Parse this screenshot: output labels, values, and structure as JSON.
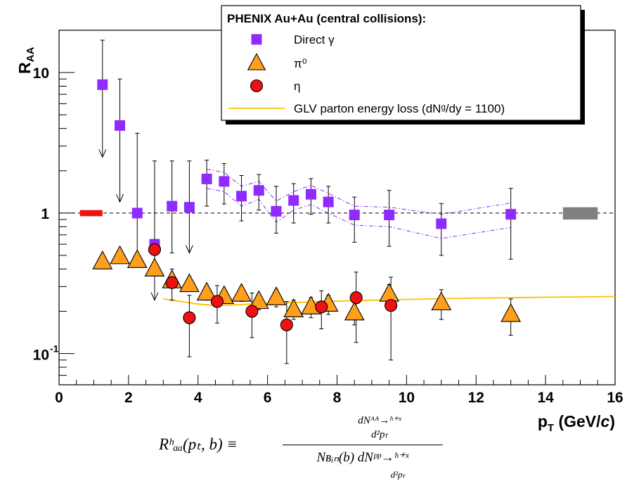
{
  "chart_data": {
    "type": "scatter",
    "ylabel": "R_AA",
    "xlabel": "p_T (GeV/c)",
    "xlim": [
      0,
      16
    ],
    "ylim": [
      0.06,
      20
    ],
    "yscale": "log",
    "x_ticks": [
      "0",
      "2",
      "4",
      "6",
      "8",
      "10",
      "12",
      "14",
      "16"
    ],
    "y_ticks": [
      {
        "value": 0.1,
        "label": "10",
        "exp": "-1"
      },
      {
        "value": 1,
        "label": "1",
        "exp": ""
      },
      {
        "value": 10,
        "label": "10",
        "exp": ""
      }
    ],
    "reference_line": 1,
    "legend": {
      "title": "PHENIX Au+Au (central collisions):",
      "position": "top-right",
      "entries": [
        {
          "name": "Direct γ",
          "marker": "square",
          "color": "#8f2bff"
        },
        {
          "name": "π⁰",
          "marker": "triangle",
          "color": "#ff9f1c"
        },
        {
          "name": "η",
          "marker": "circle",
          "color": "#ee1111"
        },
        {
          "name": "GLV parton energy loss (dNᵍ/dy = 1100)",
          "marker": "line",
          "color": "#ffbf00"
        }
      ]
    },
    "series": [
      {
        "name": "Direct γ",
        "points": [
          {
            "x": 1.25,
            "y": 8.2,
            "lo": 2.5,
            "hi": 17,
            "arrow": true
          },
          {
            "x": 1.75,
            "y": 4.2,
            "lo": 1.2,
            "hi": 9,
            "arrow": true
          },
          {
            "x": 2.25,
            "y": 1.0,
            "lo": 0.42,
            "hi": 3.7
          },
          {
            "x": 2.75,
            "y": 0.6,
            "lo": 0.24,
            "hi": 2.35,
            "arrow": true
          },
          {
            "x": 3.25,
            "y": 1.12,
            "lo": 0.52,
            "hi": 2.35
          },
          {
            "x": 3.75,
            "y": 1.1,
            "lo": 0.52,
            "hi": 2.35,
            "arrow": true
          },
          {
            "x": 4.25,
            "y": 1.75,
            "lo": 1.12,
            "hi": 2.38
          },
          {
            "x": 4.75,
            "y": 1.68,
            "lo": 1.16,
            "hi": 2.25
          },
          {
            "x": 5.25,
            "y": 1.32,
            "lo": 0.88,
            "hi": 1.85
          },
          {
            "x": 5.75,
            "y": 1.45,
            "lo": 1.05,
            "hi": 1.88
          },
          {
            "x": 6.25,
            "y": 1.03,
            "lo": 0.72,
            "hi": 1.55
          },
          {
            "x": 6.75,
            "y": 1.23,
            "lo": 0.85,
            "hi": 1.62
          },
          {
            "x": 7.25,
            "y": 1.36,
            "lo": 0.98,
            "hi": 1.76
          },
          {
            "x": 7.75,
            "y": 1.2,
            "lo": 0.85,
            "hi": 1.55
          },
          {
            "x": 8.5,
            "y": 0.97,
            "lo": 0.62,
            "hi": 1.3
          },
          {
            "x": 9.5,
            "y": 0.97,
            "lo": 0.58,
            "hi": 1.45
          },
          {
            "x": 11.0,
            "y": 0.84,
            "lo": 0.5,
            "hi": 1.17
          },
          {
            "x": 13.0,
            "y": 0.98,
            "lo": 0.47,
            "hi": 1.5
          }
        ],
        "band_upper": [
          [
            4.25,
            2.05
          ],
          [
            4.75,
            1.95
          ],
          [
            5.25,
            1.55
          ],
          [
            5.75,
            1.68
          ],
          [
            6.25,
            1.22
          ],
          [
            6.75,
            1.42
          ],
          [
            7.25,
            1.58
          ],
          [
            7.75,
            1.38
          ],
          [
            8.5,
            1.12
          ],
          [
            9.5,
            1.1
          ],
          [
            11.0,
            0.98
          ],
          [
            13.0,
            1.18
          ]
        ],
        "band_lower": [
          [
            4.25,
            1.5
          ],
          [
            4.75,
            1.42
          ],
          [
            5.25,
            1.12
          ],
          [
            5.75,
            1.25
          ],
          [
            6.25,
            0.86
          ],
          [
            6.75,
            1.05
          ],
          [
            7.25,
            1.15
          ],
          [
            7.75,
            1.0
          ],
          [
            8.5,
            0.82
          ],
          [
            9.5,
            0.8
          ],
          [
            11.0,
            0.66
          ],
          [
            13.0,
            0.79
          ]
        ]
      },
      {
        "name": "π⁰",
        "points": [
          {
            "x": 1.25,
            "y": 0.45,
            "lo": 0.41,
            "hi": 0.5
          },
          {
            "x": 1.75,
            "y": 0.49,
            "lo": 0.45,
            "hi": 0.54
          },
          {
            "x": 2.25,
            "y": 0.46,
            "lo": 0.42,
            "hi": 0.5
          },
          {
            "x": 2.75,
            "y": 0.4,
            "lo": 0.36,
            "hi": 0.44
          },
          {
            "x": 3.25,
            "y": 0.33,
            "lo": 0.3,
            "hi": 0.37
          },
          {
            "x": 3.75,
            "y": 0.31,
            "lo": 0.28,
            "hi": 0.34
          },
          {
            "x": 4.25,
            "y": 0.27,
            "lo": 0.24,
            "hi": 0.3
          },
          {
            "x": 4.75,
            "y": 0.255,
            "lo": 0.23,
            "hi": 0.28
          },
          {
            "x": 5.25,
            "y": 0.265,
            "lo": 0.235,
            "hi": 0.295
          },
          {
            "x": 5.75,
            "y": 0.235,
            "lo": 0.205,
            "hi": 0.265
          },
          {
            "x": 6.25,
            "y": 0.25,
            "lo": 0.215,
            "hi": 0.285
          },
          {
            "x": 6.75,
            "y": 0.205,
            "lo": 0.175,
            "hi": 0.24
          },
          {
            "x": 7.25,
            "y": 0.215,
            "lo": 0.18,
            "hi": 0.25
          },
          {
            "x": 7.75,
            "y": 0.225,
            "lo": 0.19,
            "hi": 0.26
          },
          {
            "x": 8.5,
            "y": 0.195,
            "lo": 0.16,
            "hi": 0.235
          },
          {
            "x": 9.5,
            "y": 0.265,
            "lo": 0.22,
            "hi": 0.31
          },
          {
            "x": 11.0,
            "y": 0.23,
            "lo": 0.175,
            "hi": 0.285
          },
          {
            "x": 13.0,
            "y": 0.19,
            "lo": 0.135,
            "hi": 0.245
          }
        ]
      },
      {
        "name": "η",
        "points": [
          {
            "x": 2.75,
            "y": 0.55,
            "lo": 0.45,
            "hi": 0.65
          },
          {
            "x": 3.25,
            "y": 0.32,
            "lo": 0.24,
            "hi": 0.4
          },
          {
            "x": 3.75,
            "y": 0.18,
            "lo": 0.095,
            "hi": 0.26
          },
          {
            "x": 4.55,
            "y": 0.235,
            "lo": 0.165,
            "hi": 0.305
          },
          {
            "x": 5.55,
            "y": 0.2,
            "lo": 0.13,
            "hi": 0.27
          },
          {
            "x": 6.55,
            "y": 0.16,
            "lo": 0.085,
            "hi": 0.235
          },
          {
            "x": 7.55,
            "y": 0.215,
            "lo": 0.15,
            "hi": 0.28
          },
          {
            "x": 8.55,
            "y": 0.25,
            "lo": 0.12,
            "hi": 0.38
          },
          {
            "x": 9.55,
            "y": 0.22,
            "lo": 0.09,
            "hi": 0.35
          }
        ]
      },
      {
        "name": "GLV parton energy loss (dNᵍ/dy = 1100)",
        "line": [
          [
            3.0,
            0.245
          ],
          [
            3.5,
            0.235
          ],
          [
            4.0,
            0.225
          ],
          [
            4.5,
            0.22
          ],
          [
            5.0,
            0.222
          ],
          [
            6.0,
            0.228
          ],
          [
            7.0,
            0.232
          ],
          [
            8.0,
            0.236
          ],
          [
            9.0,
            0.24
          ],
          [
            10.0,
            0.243
          ],
          [
            11.0,
            0.246
          ],
          [
            12.0,
            0.248
          ],
          [
            13.0,
            0.25
          ],
          [
            14.0,
            0.252
          ],
          [
            15.0,
            0.253
          ],
          [
            16.0,
            0.255
          ]
        ]
      }
    ],
    "norm_boxes": [
      {
        "x0": 0.6,
        "x1": 1.25,
        "y0": 0.95,
        "y1": 1.05,
        "color": "#ee1111"
      },
      {
        "x0": 14.5,
        "x1": 15.5,
        "y0": 0.9,
        "y1": 1.1,
        "color": "#808080"
      }
    ]
  },
  "formula": {
    "lhs": "Rʰₐₐ(pₜ, b) ≡",
    "numerator": "dNᴬᴬ→ʰ⁺ˣ",
    "numerator_denom": "d²pₜ",
    "denominator": "Nʙᵢₙ(b) dNᵖᵖ→ʰ⁺ˣ",
    "denominator_denom": "d²pₜ"
  }
}
